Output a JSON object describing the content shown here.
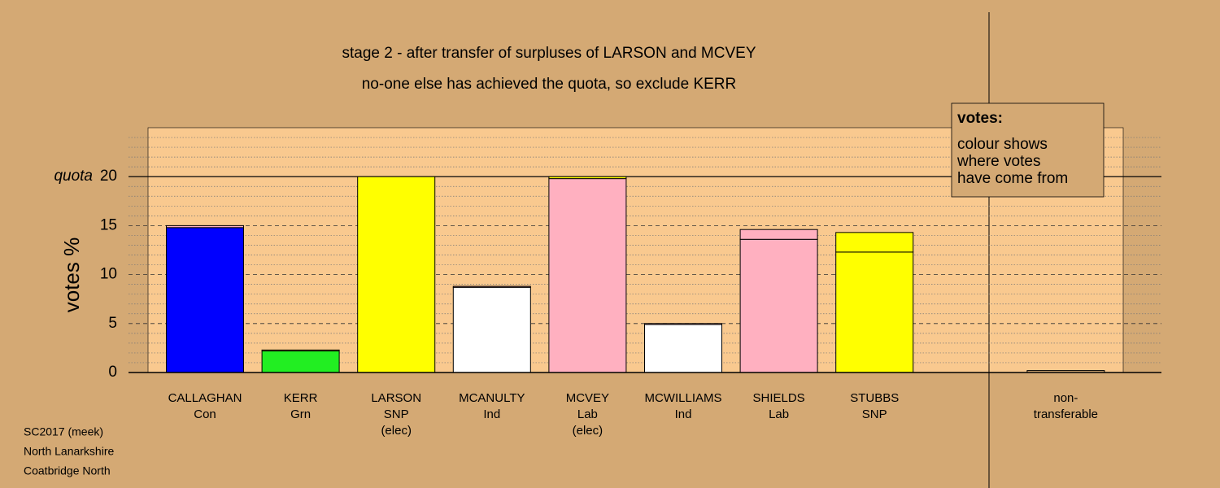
{
  "chart_data": {
    "type": "stacked-bar",
    "title": "stage 2 - after transfer of surpluses of LARSON and MCVEY",
    "subtitle": "no-one else has achieved the quota, so exclude KERR",
    "ylabel": "votes %",
    "categories": [
      [
        "CALLAGHAN",
        "Con"
      ],
      [
        "KERR",
        "Grn"
      ],
      [
        "LARSON",
        "SNP",
        "(elec)"
      ],
      [
        "MCANULTY",
        "Ind"
      ],
      [
        "MCVEY",
        "Lab",
        "(elec)"
      ],
      [
        "MCWILLIAMS",
        "Ind"
      ],
      [
        "SHIELDS",
        "Lab"
      ],
      [
        "STUBBS",
        "SNP"
      ],
      null,
      [
        "non-",
        "transferable"
      ]
    ],
    "series": [
      {
        "colors": [
          "#0000ff",
          "#22ee22",
          "#ffff00",
          "#ffffff",
          "#ffb0c0",
          "#ffffff",
          "#ffb0c0",
          "#ffff00",
          null,
          "#d4a974"
        ],
        "values": [
          14.8,
          2.2,
          20,
          8.7,
          19.8,
          4.9,
          13.6,
          12.3,
          null,
          0
        ]
      },
      {
        "colors": [
          "#ffb0c0",
          "#ffff00",
          "#ffff00",
          "#ffb0c0",
          "#ffff00",
          "#ffb0c0",
          "#ffb0c0",
          "#ffff00",
          null,
          "#d4a974"
        ],
        "values": [
          0.2,
          0.1,
          0,
          0.1,
          0.2,
          0.1,
          1.0,
          2.0,
          null,
          0.2
        ]
      }
    ],
    "ylim": [
      0,
      25
    ],
    "yticks": [
      0,
      5,
      10,
      15,
      20
    ],
    "minor_grid": [
      1,
      2,
      3,
      4,
      6,
      7,
      8,
      9,
      11,
      12,
      13,
      14,
      16,
      17,
      18,
      19,
      21,
      22,
      23,
      24
    ],
    "quota": 20,
    "quota_label": "quota",
    "legend_box": {
      "title": "votes:",
      "lines": [
        "colour shows",
        "where votes",
        "have come from"
      ]
    },
    "footnote": [
      "SC2017 (meek)",
      "North Lanarkshire",
      "Coatbridge North"
    ]
  }
}
